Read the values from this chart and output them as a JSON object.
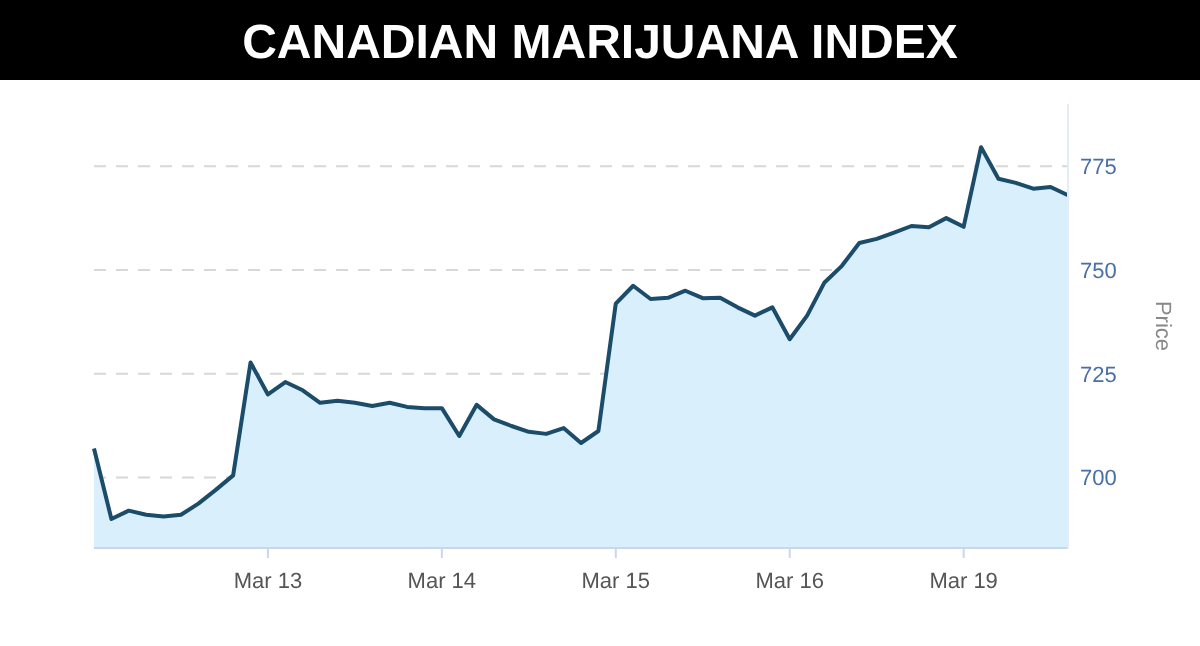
{
  "chart_data": {
    "type": "area",
    "title": "CANADIAN MARIJUANA INDEX",
    "ylabel": "Price",
    "categories": [
      null,
      null,
      null,
      null,
      null,
      null,
      null,
      null,
      null,
      null,
      "Mar 13",
      null,
      null,
      null,
      null,
      null,
      null,
      null,
      null,
      null,
      "Mar 14",
      null,
      null,
      null,
      null,
      null,
      null,
      null,
      null,
      null,
      "Mar 15",
      null,
      null,
      null,
      null,
      null,
      null,
      null,
      null,
      null,
      "Mar 16",
      null,
      null,
      null,
      null,
      null,
      null,
      null,
      null,
      null,
      "Mar 19",
      null,
      null,
      null,
      null,
      null,
      null
    ],
    "series": [
      {
        "color": "#1b4d6b",
        "values": [
          707,
          690,
          692,
          691,
          690.6,
          691,
          693.7,
          697,
          700.5,
          727.7,
          720,
          723,
          721,
          718,
          718.5,
          718,
          717.2,
          718,
          717,
          716.7,
          716.7,
          710,
          717.5,
          714,
          712.4,
          711,
          710.5,
          711.9,
          708.3,
          711.2,
          741.9,
          746.2,
          743,
          743.3,
          745,
          743.2,
          743.3,
          741,
          739,
          741,
          733.3,
          739,
          747,
          751,
          756.5,
          757.5,
          759,
          760.6,
          760.3,
          762.5,
          760.4,
          779.6,
          772,
          771,
          769.6,
          770,
          768
        ]
      }
    ],
    "ylim": [
      683,
      790
    ],
    "yticks": [
      700,
      725,
      750,
      775
    ],
    "grid": "y"
  }
}
